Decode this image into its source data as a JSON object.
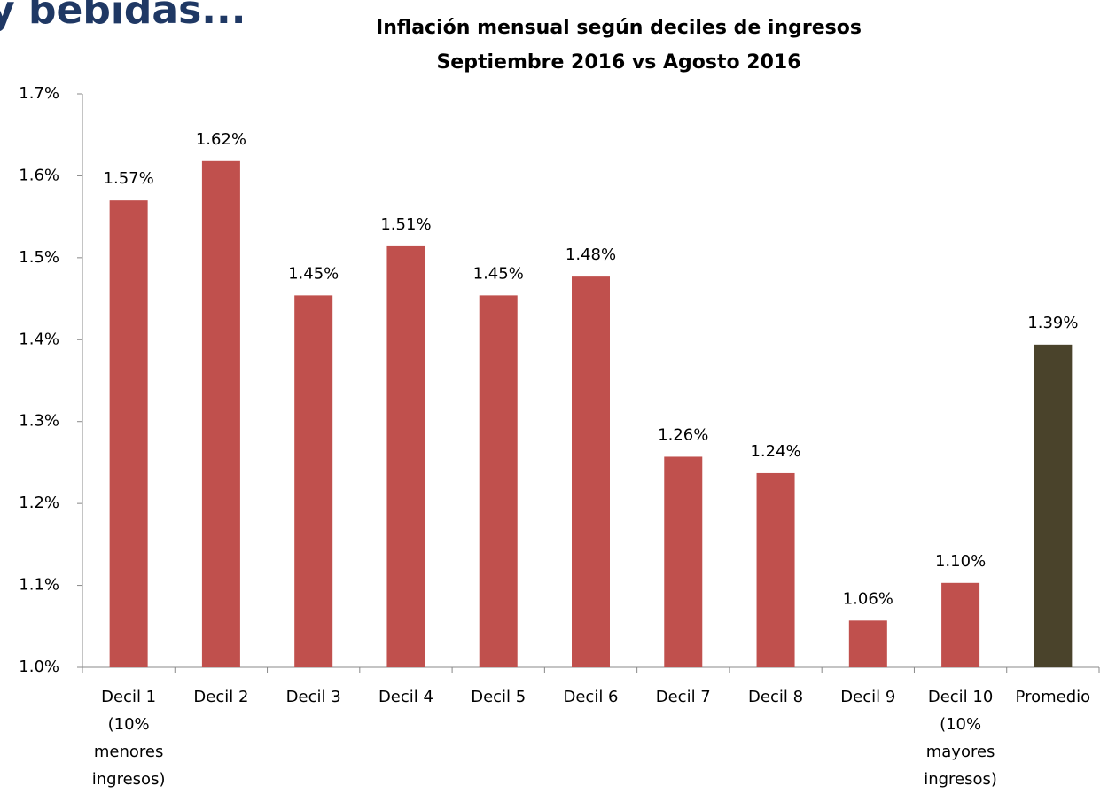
{
  "header_fragment": "y bebidas...",
  "chart_data": {
    "type": "bar",
    "title": "Inflación mensual según deciles de ingresos",
    "subtitle": "Septiembre 2016 vs Agosto 2016",
    "categories": [
      "Decil 1\n(10%\nmenores\ningresos)",
      "Decil 2",
      "Decil 3",
      "Decil 4",
      "Decil 5",
      "Decil 6",
      "Decil 7",
      "Decil 8",
      "Decil 9",
      "Decil 10\n(10%\nmayores\ningresos)",
      "Promedio"
    ],
    "values": [
      1.57,
      1.618,
      1.454,
      1.514,
      1.454,
      1.477,
      1.257,
      1.237,
      1.057,
      1.103,
      1.394
    ],
    "value_labels": [
      "1.57%",
      "1.62%",
      "1.45%",
      "1.51%",
      "1.45%",
      "1.48%",
      "1.26%",
      "1.24%",
      "1.06%",
      "1.10%",
      "1.39%"
    ],
    "colors": [
      "#c0504d",
      "#c0504d",
      "#c0504d",
      "#c0504d",
      "#c0504d",
      "#c0504d",
      "#c0504d",
      "#c0504d",
      "#c0504d",
      "#c0504d",
      "#4a432b"
    ],
    "ylim": [
      1.0,
      1.7
    ],
    "yticks": [
      {
        "value": 1.0,
        "label": "1.0%"
      },
      {
        "value": 1.1,
        "label": "1.1%"
      },
      {
        "value": 1.2,
        "label": "1.2%"
      },
      {
        "value": 1.3,
        "label": "1.3%"
      },
      {
        "value": 1.4,
        "label": "1.4%"
      },
      {
        "value": 1.5,
        "label": "1.5%"
      },
      {
        "value": 1.6,
        "label": "1.6%"
      },
      {
        "value": 1.7,
        "label": "1.7%"
      }
    ],
    "grid": false
  }
}
